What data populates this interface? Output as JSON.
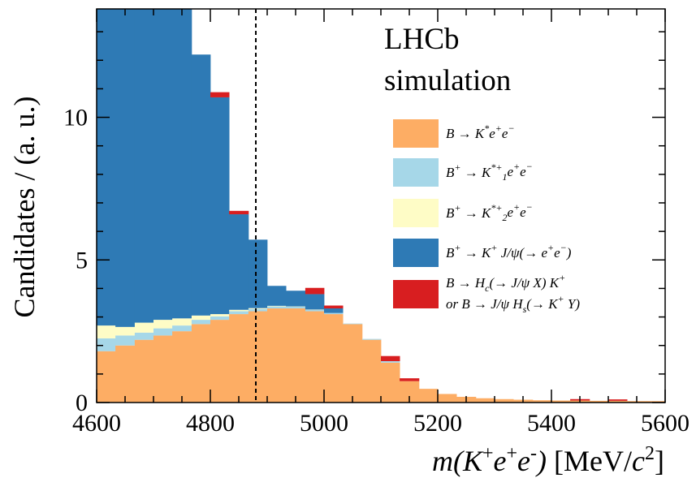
{
  "chart_data": {
    "type": "bar",
    "stacked": true,
    "ylabel": "Candidates / (a. u.)",
    "xlabel": {
      "prefix": "m(K",
      "sup1": "+",
      "mid": "e",
      "sup2": "+",
      "mid2": "e",
      "sup3": "-",
      "close": ")",
      "unit": " [MeV/",
      "unit_c": "c",
      "unit_sup": "2",
      "unit_close": "]"
    },
    "annotation": [
      "LHCb",
      "simulation"
    ],
    "xlim": [
      4600,
      5600
    ],
    "ylim": [
      0,
      13.8
    ],
    "x_ticks": [
      "4600",
      "4800",
      "5000",
      "5200",
      "5400",
      "5600"
    ],
    "y_ticks": [
      "0",
      "5",
      "10"
    ],
    "y_tick_values": [
      0,
      5,
      10
    ],
    "cut_line_x": 4880,
    "bin_edges": [
      4600,
      4633,
      4667,
      4700,
      4733,
      4767,
      4800,
      4833,
      4867,
      4900,
      4933,
      4967,
      5000,
      5033,
      5067,
      5100,
      5133,
      5167,
      5200,
      5233,
      5267,
      5300,
      5333,
      5367,
      5400,
      5433,
      5467,
      5500,
      5533,
      5567,
      5600
    ],
    "series": [
      {
        "name": "B → K* e+e−",
        "color": "#fdad64",
        "values": [
          1.8,
          2.0,
          2.2,
          2.35,
          2.5,
          2.75,
          2.9,
          3.1,
          3.2,
          3.3,
          3.3,
          3.2,
          3.1,
          2.75,
          2.2,
          1.4,
          0.75,
          0.48,
          0.3,
          0.2,
          0.15,
          0.12,
          0.1,
          0.08,
          0.07,
          0.07,
          0.06,
          0.06,
          0.05,
          0.05
        ]
      },
      {
        "name": "B+ → K1*+ e+e−",
        "color": "#a6d7e8",
        "values": [
          0.45,
          0.35,
          0.25,
          0.25,
          0.2,
          0.15,
          0.12,
          0.1,
          0.08,
          0.07,
          0.06,
          0.05,
          0.04,
          0.02,
          0.03,
          0.05,
          0.0,
          0.0,
          0.0,
          0.0,
          0.0,
          0.0,
          0.0,
          0.0,
          0.0,
          0.0,
          0.0,
          0.0,
          0.0,
          0.0
        ]
      },
      {
        "name": "B+ → K2*+ e+e−",
        "color": "#fefcc6",
        "values": [
          0.45,
          0.3,
          0.35,
          0.3,
          0.25,
          0.15,
          0.08,
          0.05,
          0.03,
          0.02,
          0.01,
          0.01,
          0.0,
          0.0,
          0.0,
          0.0,
          0.0,
          0.0,
          0.0,
          0.0,
          0.0,
          0.0,
          0.0,
          0.0,
          0.0,
          0.0,
          0.0,
          0.0,
          0.0,
          0.0
        ]
      },
      {
        "name": "B+ → K+ J/ψ(→ e+e−)",
        "color": "#2e7ab5",
        "values": [
          11.1,
          11.15,
          11.0,
          10.9,
          10.85,
          9.15,
          7.6,
          3.35,
          2.4,
          0.7,
          0.55,
          0.54,
          0.16,
          0.0,
          0.0,
          0.0,
          0.0,
          0.0,
          0.0,
          0.0,
          0.0,
          0.0,
          0.0,
          0.0,
          0.0,
          0.0,
          0.0,
          0.0,
          0.0,
          0.0
        ]
      },
      {
        "name": "B → Hc(→ J/ψ X) K+ or B → J/ψ Hs(→ K+ Y)",
        "color": "#d81e20",
        "values": [
          0.0,
          0.0,
          0.0,
          0.0,
          0.0,
          0.0,
          0.18,
          0.12,
          0.0,
          0.0,
          0.0,
          0.22,
          0.1,
          0.0,
          0.0,
          0.18,
          0.1,
          0.0,
          0.0,
          0.0,
          0.0,
          0.0,
          0.0,
          0.0,
          0.0,
          0.05,
          0.0,
          0.05,
          0.0,
          0.0
        ]
      }
    ],
    "legend": [
      {
        "color": "#fdad64",
        "parts": [
          [
            "B → K",
            "n"
          ],
          [
            "*",
            "sup"
          ],
          [
            "e",
            "n"
          ],
          [
            "+",
            "sup"
          ],
          [
            "e",
            "n"
          ],
          [
            "−",
            "sup"
          ]
        ]
      },
      {
        "color": "#a6d7e8",
        "parts": [
          [
            "B",
            "n"
          ],
          [
            "+",
            "sup"
          ],
          [
            " → K",
            "n"
          ],
          [
            "*+",
            "sup"
          ],
          [
            "1",
            "sub"
          ],
          [
            "e",
            "n"
          ],
          [
            "+",
            "sup"
          ],
          [
            "e",
            "n"
          ],
          [
            "−",
            "sup"
          ]
        ]
      },
      {
        "color": "#fefcc6",
        "parts": [
          [
            "B",
            "n"
          ],
          [
            "+",
            "sup"
          ],
          [
            " → K",
            "n"
          ],
          [
            "*+",
            "sup"
          ],
          [
            "2",
            "sub"
          ],
          [
            "e",
            "n"
          ],
          [
            "+",
            "sup"
          ],
          [
            "e",
            "n"
          ],
          [
            "−",
            "sup"
          ]
        ]
      },
      {
        "color": "#2e7ab5",
        "parts": [
          [
            "B",
            "n"
          ],
          [
            "+",
            "sup"
          ],
          [
            " → K",
            "n"
          ],
          [
            "+",
            "sup"
          ],
          [
            " J/ψ(→ e",
            "n"
          ],
          [
            "+",
            "sup"
          ],
          [
            "e",
            "n"
          ],
          [
            "−",
            "sup"
          ],
          [
            ")",
            "n"
          ]
        ]
      },
      {
        "color": "#d81e20",
        "parts": [
          [
            "B → H",
            "n"
          ],
          [
            "c",
            "sub"
          ],
          [
            "(→ J/ψ X) K",
            "n"
          ],
          [
            "+",
            "sup"
          ]
        ],
        "parts2": [
          [
            "or B → J/ψ H",
            "n"
          ],
          [
            "s",
            "sub"
          ],
          [
            "(→ K",
            "n"
          ],
          [
            "+",
            "sup"
          ],
          [
            " Y)",
            "n"
          ]
        ]
      }
    ]
  }
}
